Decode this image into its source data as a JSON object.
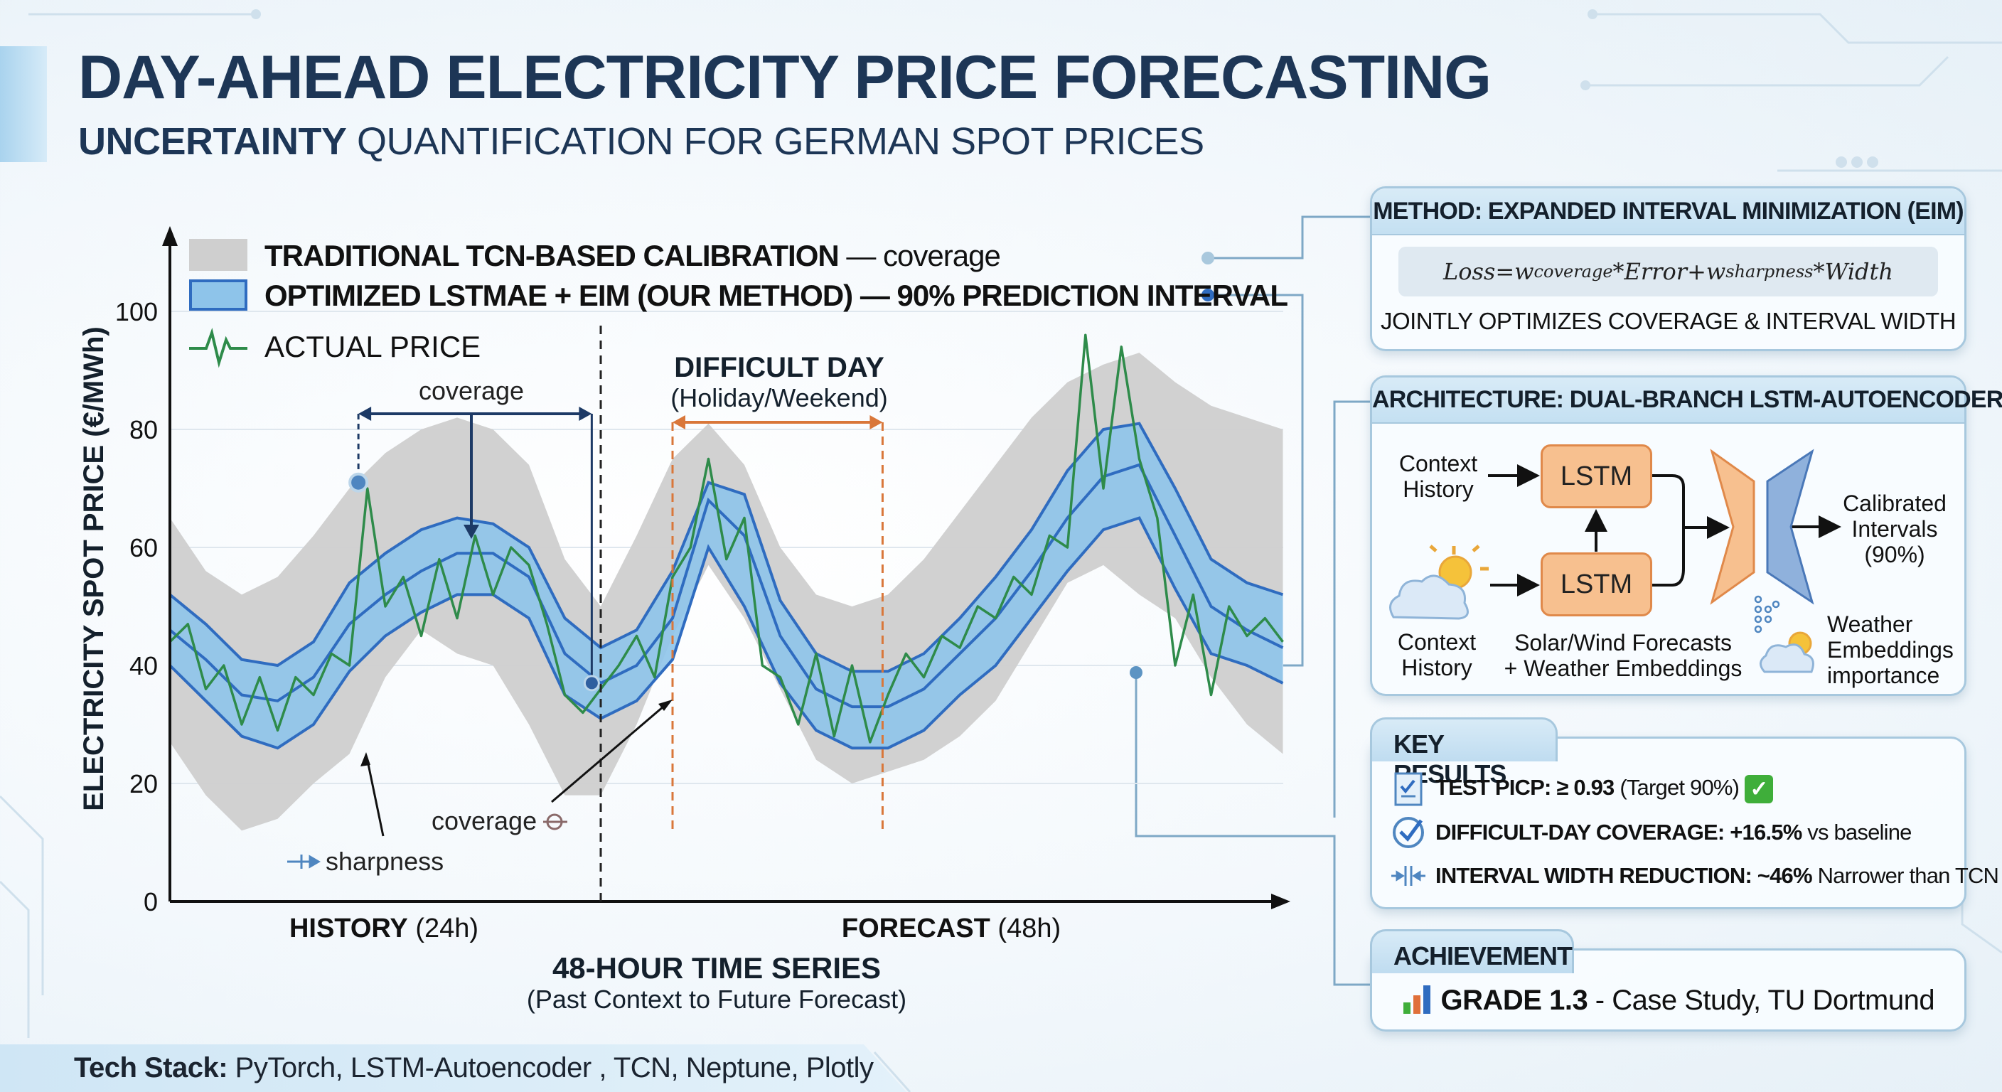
{
  "header": {
    "title": "DAY-AHEAD ELECTRICITY PRICE FORECASTING",
    "subtitle_bold": "UNCERTAINTY",
    "subtitle_rest": " QUANTIFICATION FOR GERMAN SPOT PRICES"
  },
  "chart_data": {
    "type": "area",
    "ylabel": "ELECTRICITY SPOT PRICE (€/MWh)",
    "yticks": [
      0,
      20,
      40,
      60,
      80,
      100
    ],
    "ytick_labels": [
      "0",
      "20",
      "40",
      "60",
      "80",
      "100"
    ],
    "ylim": [
      0,
      100
    ],
    "xlim_hours": [
      0,
      62
    ],
    "grid": true,
    "legend_position": "top-left",
    "legend": [
      {
        "bold": "TRADITIONAL TCN-BASED CALIBRATION",
        "normal": " — coverage"
      },
      {
        "bold": "OPTIMIZED LSTMAE + EIM (OUR METHOD) — 90% PREDICTION INTERVAL",
        "normal": ""
      },
      {
        "bold": "",
        "normal": "ACTUAL PRICE"
      }
    ],
    "x_labels": {
      "history_bold": "HISTORY",
      "history_rest": " (24h)",
      "forecast_bold": "FORECAST",
      "forecast_rest": " (48h)",
      "axis_title": "48-HOUR TIME SERIES",
      "axis_subtitle": "(Past Context to Future Forecast)"
    },
    "history_end_hour": 24,
    "band_x_hours": [
      0,
      2,
      4,
      6,
      8,
      10,
      12,
      14,
      16,
      18,
      20,
      22,
      24,
      26,
      28,
      30,
      32,
      34,
      36,
      38,
      40,
      42,
      44,
      46,
      48,
      50,
      52,
      54,
      56,
      58,
      60,
      62
    ],
    "tcn_band": {
      "upper": [
        65,
        56,
        52,
        55,
        62,
        70,
        76,
        80,
        82,
        80,
        74,
        58,
        50,
        62,
        75,
        81,
        74,
        60,
        52,
        50,
        52,
        58,
        66,
        74,
        82,
        88,
        91,
        93,
        88,
        84,
        82,
        80
      ],
      "lower": [
        27,
        18,
        12,
        14,
        20,
        25,
        38,
        46,
        42,
        40,
        30,
        18,
        18,
        30,
        45,
        57,
        48,
        36,
        24,
        20,
        22,
        24,
        28,
        34,
        44,
        54,
        57,
        52,
        48,
        38,
        30,
        25
      ]
    },
    "lstm_band": {
      "upper": [
        52,
        47,
        41,
        40,
        44,
        54,
        59,
        63,
        65,
        64,
        60,
        48,
        43,
        46,
        56,
        71,
        69,
        51,
        42,
        39,
        39,
        42,
        48,
        55,
        63,
        73,
        80,
        81,
        70,
        58,
        54,
        52
      ],
      "median": [
        46,
        41,
        35,
        34,
        38,
        47,
        52,
        56,
        59,
        59,
        55,
        42,
        37,
        40,
        48,
        68,
        62,
        45,
        36,
        33,
        33,
        36,
        42,
        48,
        56,
        65,
        72,
        74,
        62,
        50,
        46,
        43
      ],
      "lower": [
        40,
        34,
        28,
        26,
        30,
        39,
        45,
        49,
        52,
        52,
        48,
        35,
        31,
        34,
        41,
        60,
        50,
        37,
        29,
        26,
        26,
        29,
        35,
        40,
        48,
        56,
        63,
        65,
        53,
        42,
        40,
        37
      ]
    },
    "actual": {
      "x": [
        0,
        1,
        2,
        3,
        4,
        5,
        6,
        7,
        8,
        9,
        10,
        11,
        12,
        13,
        14,
        15,
        16,
        17,
        18,
        19,
        20,
        21,
        22,
        23,
        24,
        25,
        26,
        27,
        28,
        29,
        30,
        31,
        32,
        33,
        34,
        35,
        36,
        37,
        38,
        39,
        40,
        41,
        42,
        43,
        44,
        45,
        46,
        47,
        48,
        49,
        50,
        51,
        52,
        53,
        54,
        55,
        56,
        57,
        58,
        59,
        60,
        61,
        62
      ],
      "y": [
        44,
        47,
        36,
        40,
        30,
        38,
        29,
        38,
        35,
        42,
        40,
        70,
        50,
        55,
        45,
        58,
        48,
        62,
        52,
        60,
        57,
        47,
        35,
        32,
        36,
        40,
        45,
        38,
        55,
        60,
        75,
        58,
        65,
        40,
        38,
        30,
        42,
        28,
        40,
        27,
        35,
        42,
        38,
        45,
        43,
        50,
        48,
        55,
        52,
        62,
        60,
        96,
        70,
        94,
        75,
        65,
        40,
        52,
        35,
        50,
        45,
        48,
        44
      ]
    },
    "annotations": {
      "coverage_top": "coverage",
      "coverage_bottom": "coverage",
      "sharpness": "sharpness",
      "difficult_day_title": "DIFFICULT DAY",
      "difficult_day_subtitle": "(Holiday/Weekend)",
      "difficult_day_hours": [
        28,
        39.7
      ],
      "coverage_span_hours": [
        10.5,
        23.5
      ]
    }
  },
  "colors": {
    "tcn_band": "#cfcfcf",
    "lstm_band": "#8ec4ea",
    "lstm_line": "#2f6cc0",
    "actual": "#2e8b4a",
    "difficult_day": "#d9773a",
    "title": "#1d3656"
  },
  "panels": {
    "method": {
      "title": "METHOD: EXPANDED INTERVAL MINIMIZATION (EIM)",
      "formula": {
        "loss": "Loss",
        "eq": " = ",
        "w": "w",
        "sub1": "coverage",
        "op1": " * ",
        "error": "Error",
        "plus": " + ",
        "sub2": "sharpness",
        "op2": " * ",
        "width": "Width"
      },
      "caption": "JOINTLY OPTIMIZES COVERAGE & INTERVAL WIDTH"
    },
    "architecture": {
      "title": "ARCHITECTURE: DUAL-BRANCH LSTM-AUTOENCODER",
      "input_top": [
        "Context",
        "History"
      ],
      "input_bottom": [
        "Context",
        "History"
      ],
      "lstm_label": "LSTM",
      "branch_caption": [
        "Solar/Wind Forecasts",
        "+ Weather Embeddings"
      ],
      "output": [
        "Calibrated",
        "Intervals",
        "(90%)"
      ],
      "weather": [
        "Weather",
        "Embeddings",
        "importance"
      ],
      "icons": [
        "cloud-sun-icon",
        "encoder-icon",
        "decoder-icon",
        "embedding-dots-icon"
      ]
    },
    "key_results": {
      "title": "KEY RESULTS",
      "items": [
        {
          "icon": "checklist-icon",
          "bold": "TEST PICP: ≥ 0.93",
          "normal": " (Target 90%) ",
          "badge": "✓"
        },
        {
          "icon": "check-circle-icon",
          "bold": "DIFFICULT-DAY COVERAGE: +16.5%",
          "normal": " vs baseline"
        },
        {
          "icon": "width-compress-icon",
          "bold": "INTERVAL WIDTH REDUCTION: ~46%",
          "normal": " Narrower than TCN"
        }
      ]
    },
    "achievement": {
      "title": "ACHIEVEMENT",
      "icon": "bar-chart-icon",
      "bold": "GRADE 1.3",
      "normal": " - Case Study, TU Dortmund"
    }
  },
  "footer": {
    "bold": "Tech Stack:",
    "normal": " PyTorch, LSTM-Autoencoder , TCN, Neptune, Plotly"
  }
}
